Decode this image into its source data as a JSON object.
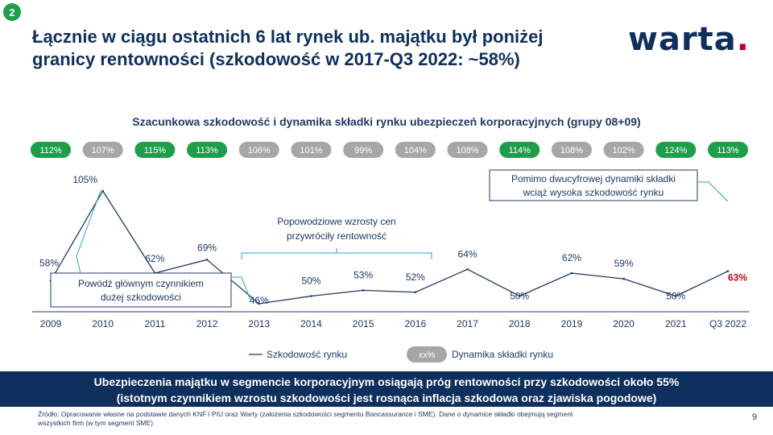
{
  "slide_number": "2",
  "title": "Łącznie w ciągu ostatnich 6 lat rynek ub. majątku był poniżej granicy rentowności (szkodowość w 2017-Q3 2022: ~58%)",
  "logo": {
    "text": "warta",
    "dot": "."
  },
  "chart_data": {
    "type": "line",
    "title": "Szacunkowa szkodowość i dynamika składki rynku ubezpieczeń korporacyjnych (grupy 08+09)",
    "categories": [
      "2009",
      "2010",
      "2011",
      "2012",
      "2013",
      "2014",
      "2015",
      "2016",
      "2017",
      "2018",
      "2019",
      "2020",
      "2021",
      "Q3 2022"
    ],
    "series": [
      {
        "name": "Szkodowość rynku",
        "values": [
          58,
          105,
          62,
          69,
          46,
          50,
          53,
          52,
          64,
          50,
          62,
          59,
          50,
          63
        ],
        "unit": "%",
        "color": "#1f3864"
      }
    ],
    "value_labels": [
      "58%",
      "105%",
      "62%",
      "69%",
      "46%",
      "50%",
      "53%",
      "52%",
      "64%",
      "50%",
      "62%",
      "59%",
      "50%",
      "63%"
    ],
    "highlight_last_color": "#d0021b",
    "premium_growth": {
      "name": "Dynamika składki rynku",
      "labels": [
        "112%",
        "107%",
        "115%",
        "113%",
        "106%",
        "101%",
        "99%",
        "104%",
        "108%",
        "114%",
        "108%",
        "102%",
        "124%",
        "113%"
      ],
      "highlight": [
        true,
        false,
        true,
        true,
        false,
        false,
        false,
        false,
        false,
        true,
        false,
        false,
        true,
        true
      ],
      "highlight_color": "#1e9e4a",
      "default_color": "#a6a6a6"
    },
    "annotations": [
      {
        "text_lines": [
          "Powódź głównym czynnikiem",
          "dużej szkodowości"
        ]
      },
      {
        "text_lines": [
          "Popowodziowe wzrosty cen",
          "przywróciły rentowność"
        ]
      },
      {
        "text_lines": [
          "Pomimo dwucyfrowej dynamiki składki",
          "wciąż wysoka szkodowość rynku"
        ]
      }
    ],
    "legend": {
      "line_label": "Szkodowość rynku",
      "badge_text": "xx%",
      "badge_label": "Dynamika składki rynku"
    }
  },
  "footer_message": {
    "line1": "Ubezpieczenia majątku w segmencie korporacyjnym osiągają próg rentowności przy szkodowości około 55%",
    "line2": "(istotnym czynnikiem wzrostu szkodowości jest rosnąca inflacja szkodowa oraz zjawiska pogodowe)"
  },
  "source": "Źródło: Opracowanie własne na podstawie danych KNF i PIU oraz Warty (założenia szkodowości segmentu Bancassurance i SME). Dane o dynamice składki obejmują segment wszystkich firm (w tym segment SME)",
  "page_number": "9"
}
